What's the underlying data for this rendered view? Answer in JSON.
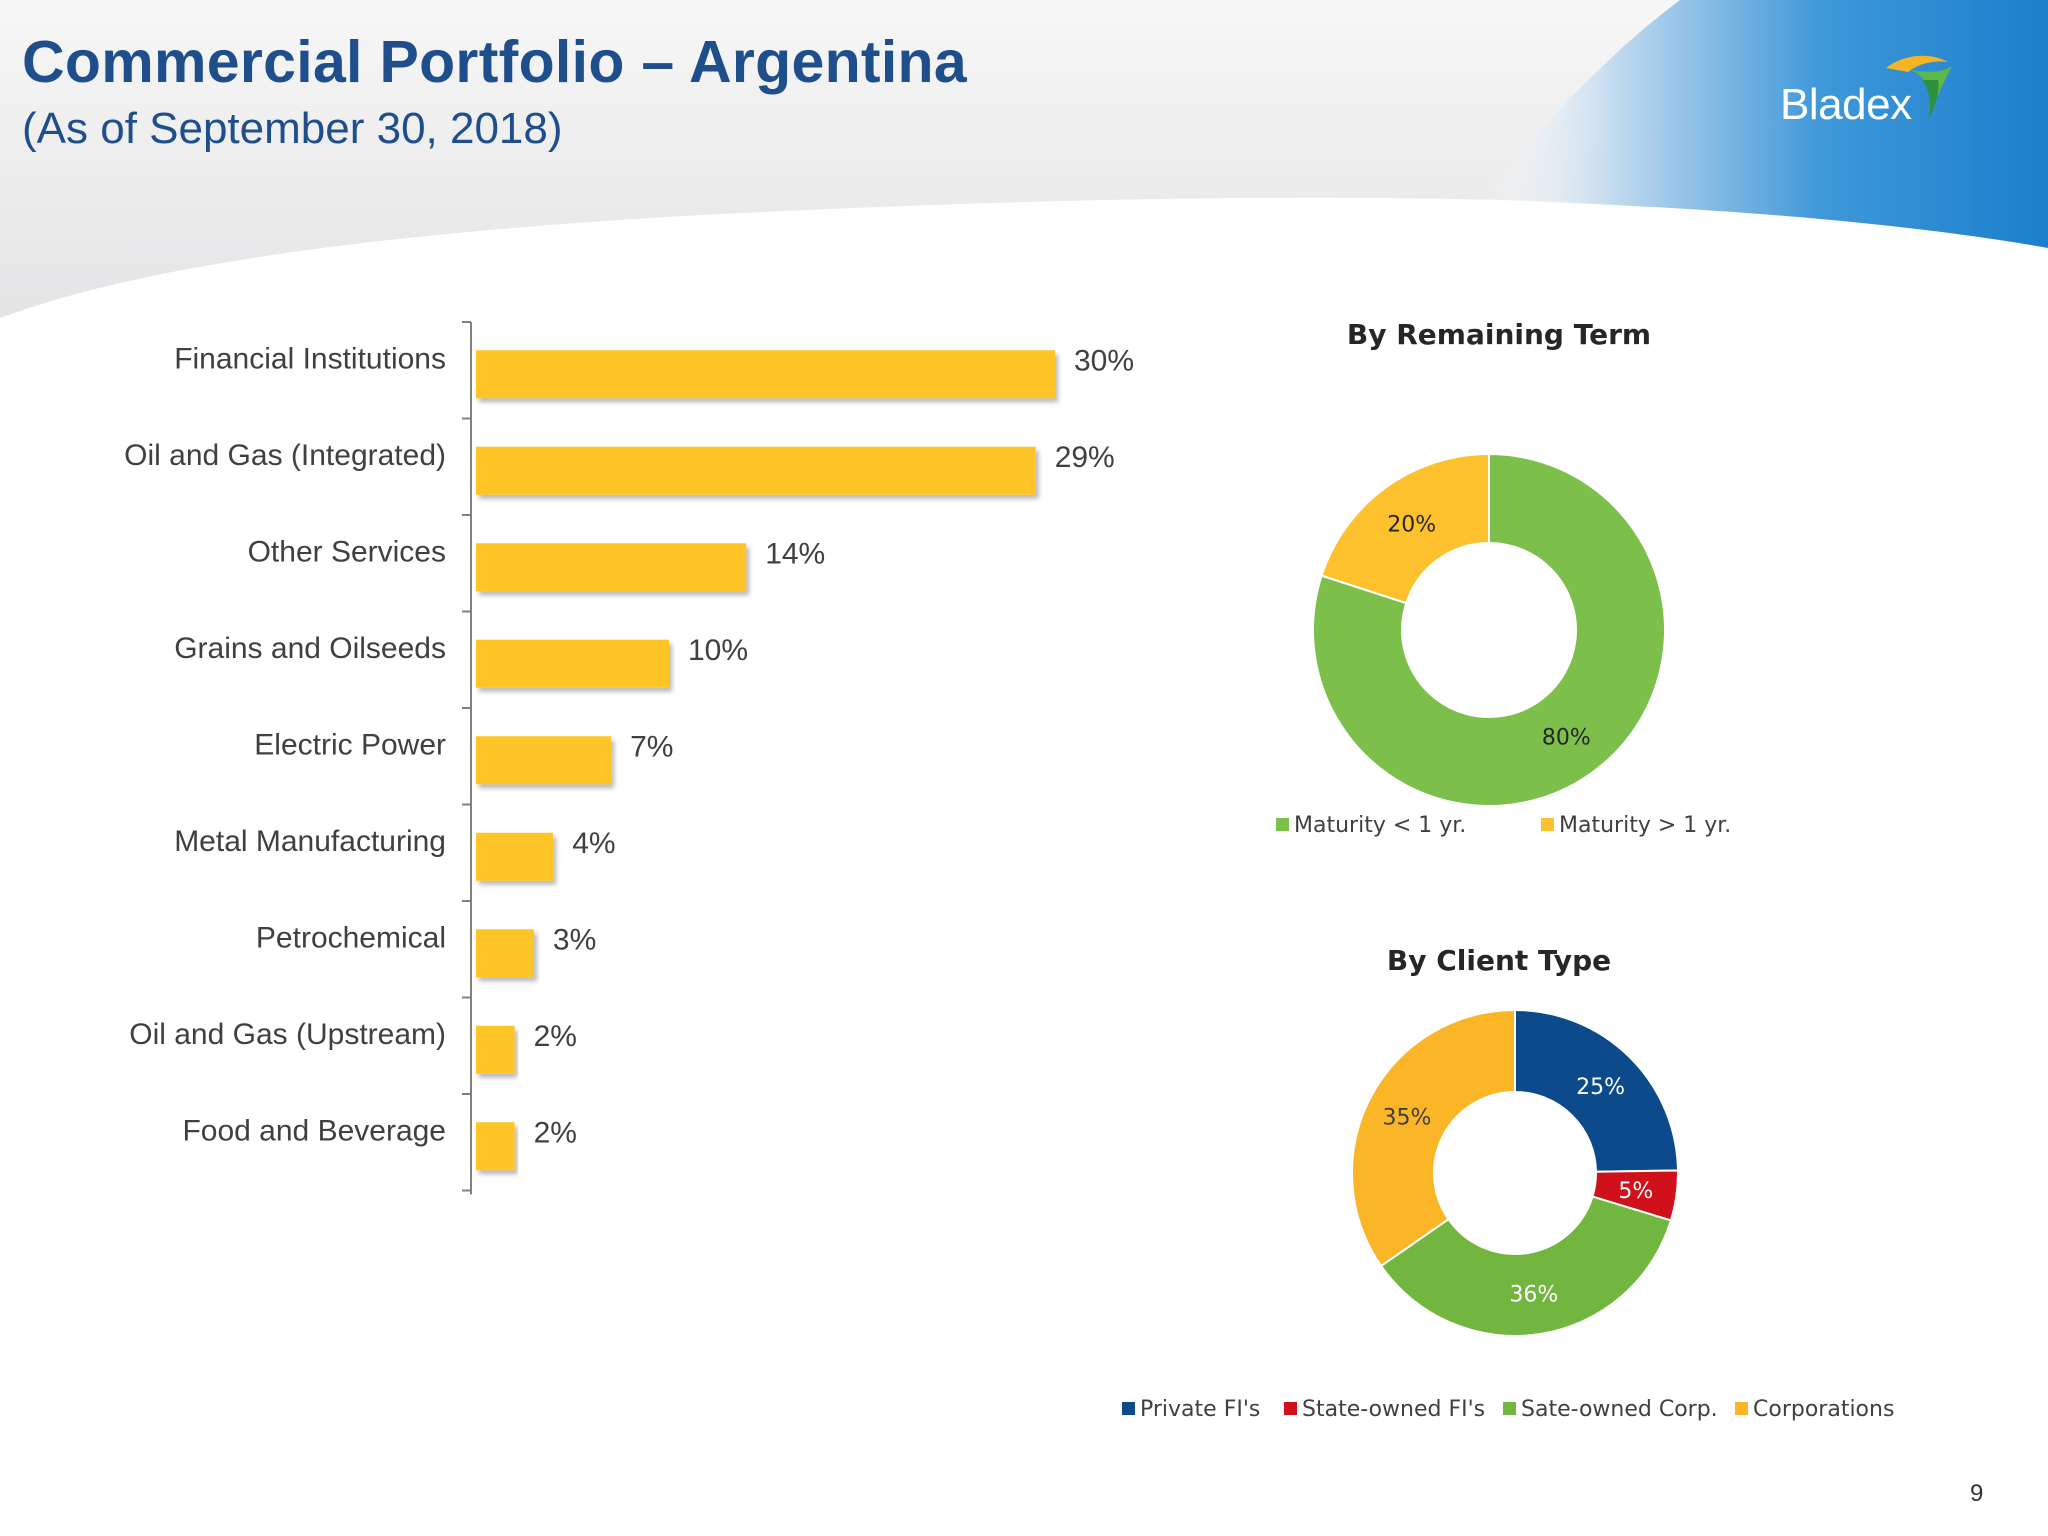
{
  "header": {
    "title": "Commercial Portfolio – Argentina",
    "subtitle": "(As of September 30, 2018)",
    "logo_text": "Bladex",
    "colors": {
      "title": "#1f4e8c",
      "brand_blue": "#1f86d1"
    }
  },
  "page_number": "9",
  "chart_data": [
    {
      "type": "bar",
      "orientation": "horizontal",
      "title": "",
      "categories": [
        "Financial Institutions",
        "Oil and Gas (Integrated)",
        "Other Services",
        "Grains and Oilseeds",
        "Electric Power",
        "Metal Manufacturing",
        "Petrochemical",
        "Oil and Gas (Upstream)",
        "Food and Beverage"
      ],
      "values": [
        30,
        29,
        14,
        10,
        7,
        4,
        3,
        2,
        2
      ],
      "labels": [
        "30%",
        "29%",
        "14%",
        "10%",
        "7%",
        "4%",
        "3%",
        "2%",
        "2%"
      ],
      "unit": "%",
      "color": "#ffc527"
    },
    {
      "type": "pie",
      "variant": "donut",
      "title": "By Remaining Term",
      "slices": [
        {
          "name": "Maturity < 1 yr.",
          "value": 80,
          "label": "80%",
          "color": "#7cc04b"
        },
        {
          "name": "Maturity > 1 yr.",
          "value": 20,
          "label": "20%",
          "color": "#fdc12d"
        }
      ],
      "legend_position": "bottom"
    },
    {
      "type": "pie",
      "variant": "donut",
      "title": "By Client Type",
      "slices": [
        {
          "name": "Private FI's",
          "value": 25,
          "label": "25%",
          "color": "#0d4a8c"
        },
        {
          "name": "State-owned FI's",
          "value": 5,
          "label": "5%",
          "color": "#d0111b"
        },
        {
          "name": "Sate-owned Corp.",
          "value": 36,
          "label": "36%",
          "color": "#72b63f"
        },
        {
          "name": "Corporations",
          "value": 35,
          "label": "35%",
          "color": "#fbb627"
        }
      ],
      "legend_position": "bottom"
    }
  ]
}
